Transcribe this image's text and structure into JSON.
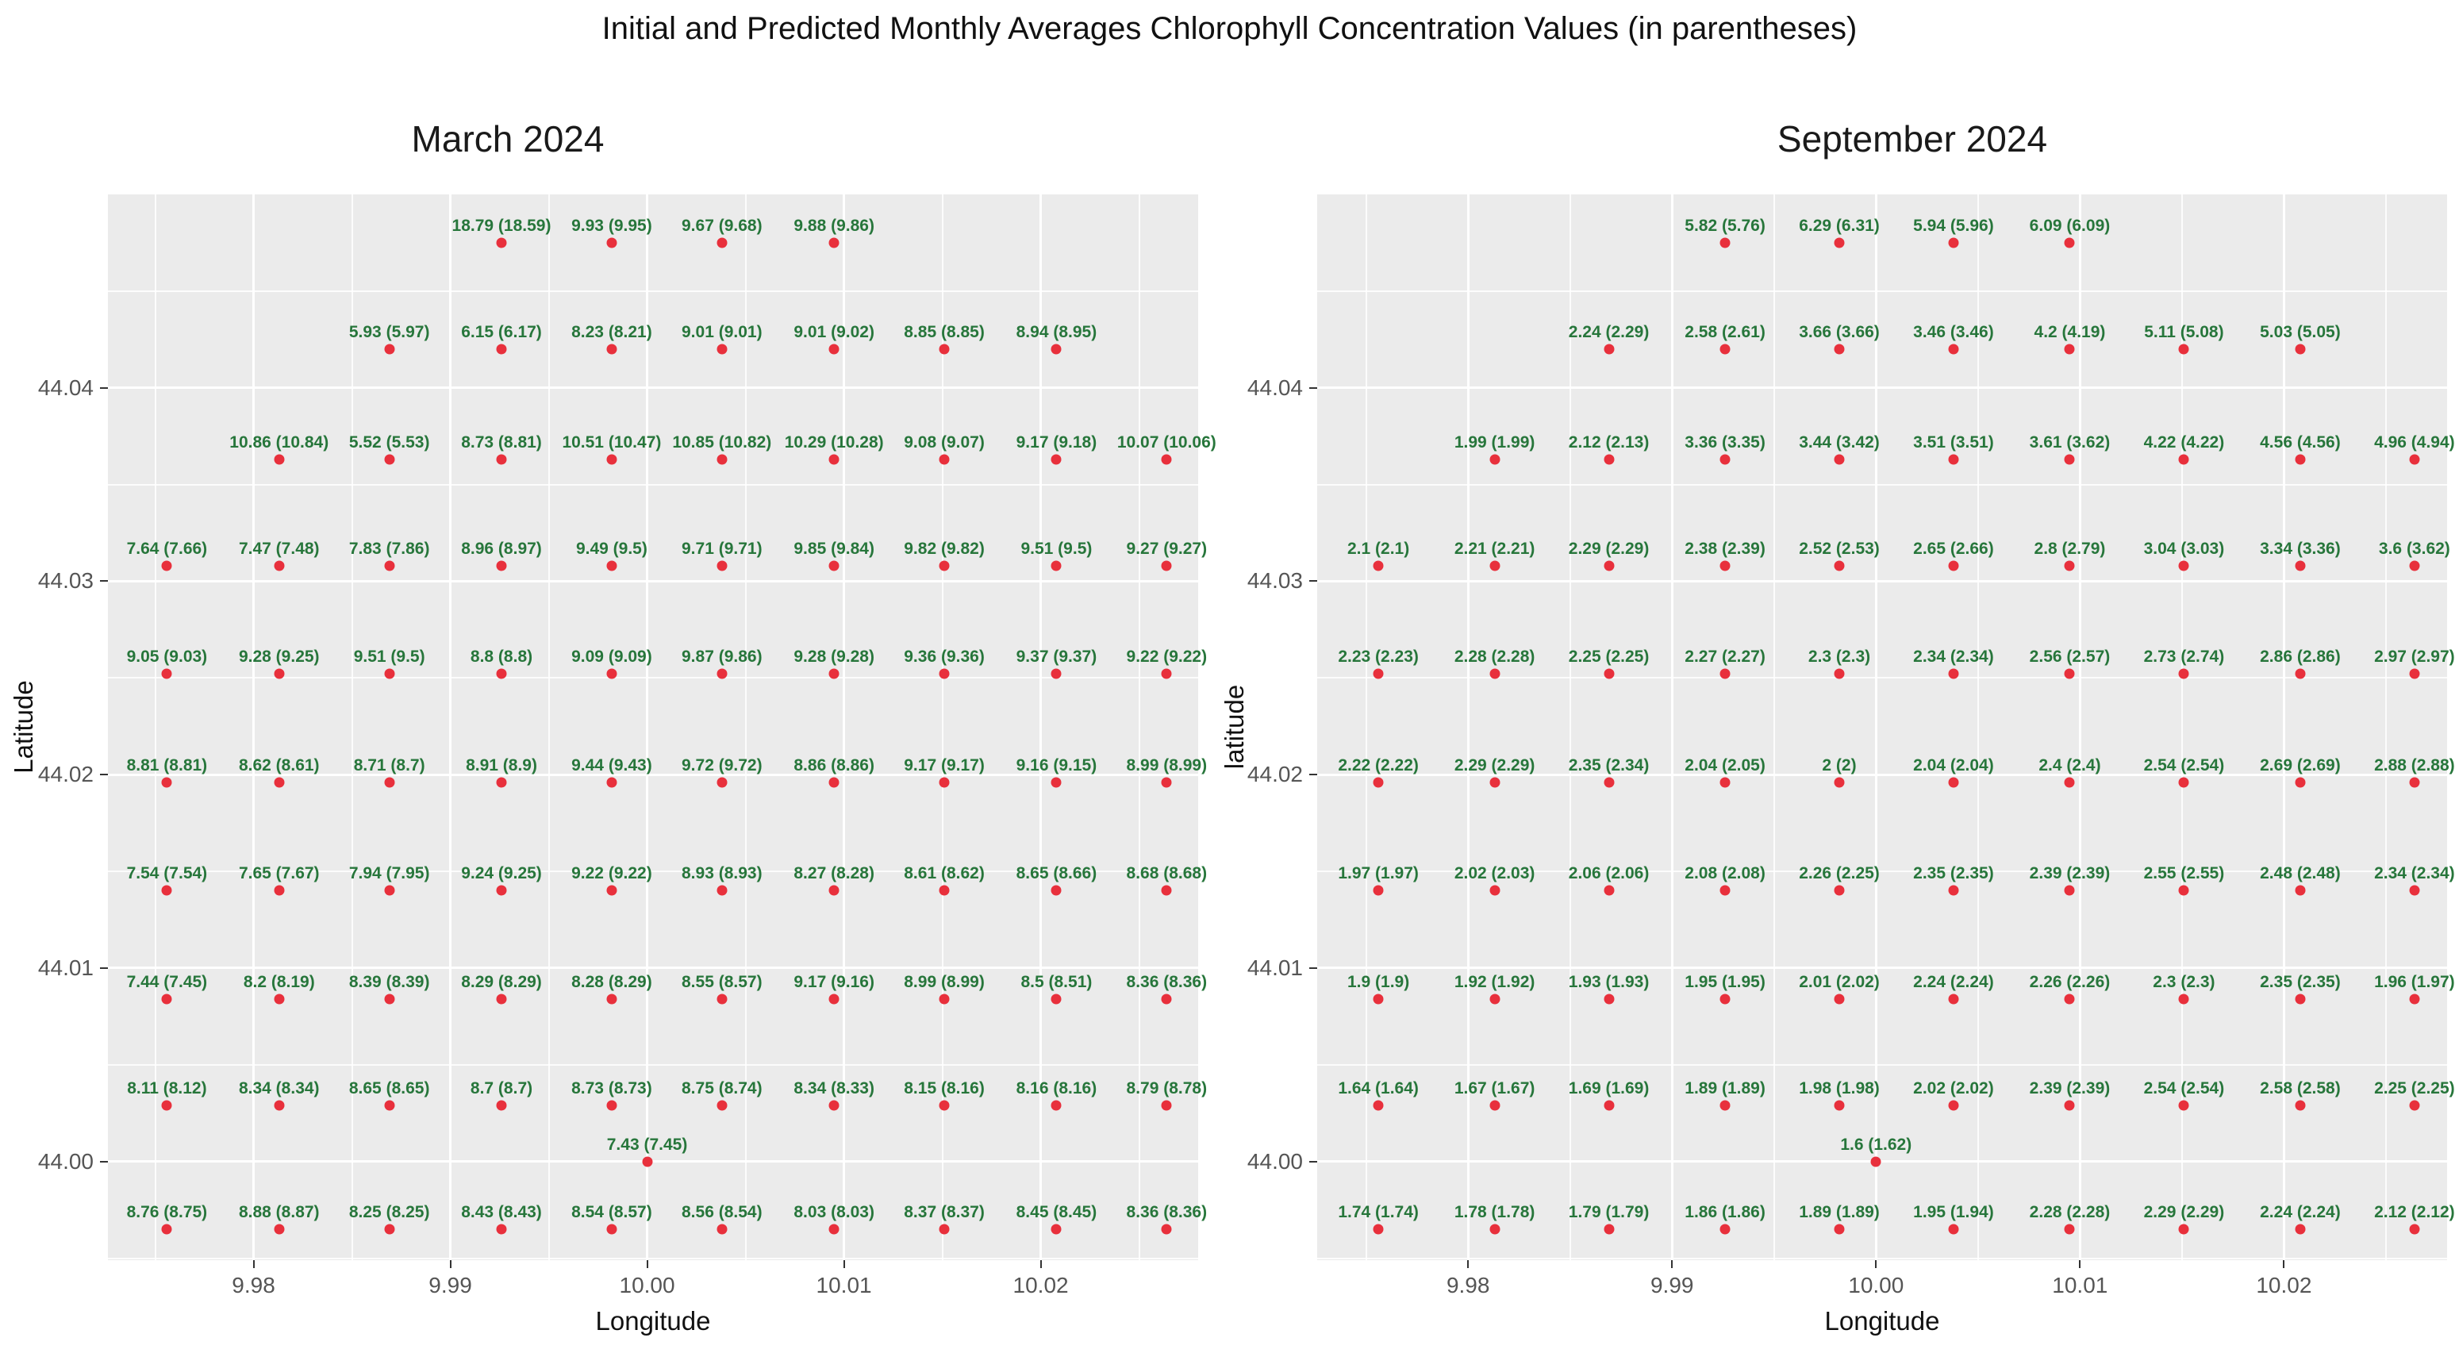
{
  "title": "Initial and Predicted Monthly Averages Chlorophyll Concentration Values (in parentheses)",
  "colors": {
    "point": "#e8303c",
    "label": "#27763b",
    "panel_bg": "#ebebeb",
    "grid": "#ffffff",
    "tick_text": "#555555",
    "axis_text": "#111111"
  },
  "shared_axes": {
    "xlim": [
      9.9726,
      10.028
    ],
    "ylim": [
      43.9949,
      44.05
    ],
    "x_tick_labels": [
      "9.98",
      "9.99",
      "10.00",
      "10.01",
      "10.02"
    ],
    "x_tick_values": [
      9.98,
      9.99,
      10.0,
      10.01,
      10.02
    ],
    "y_tick_labels": [
      "44.04",
      "44.03",
      "44.02",
      "44.01",
      "44.00"
    ],
    "y_tick_values": [
      44.04,
      44.03,
      44.02,
      44.01,
      44.0
    ],
    "x_minor": [
      9.975,
      9.985,
      9.995,
      10.005,
      10.015,
      10.025
    ],
    "y_minor": [
      43.995,
      44.005,
      44.015,
      44.025,
      44.035,
      44.045
    ],
    "col_lons": [
      9.9756,
      9.9813,
      9.9869,
      9.9926,
      9.9982,
      10.0038,
      10.0095,
      10.0151,
      10.0208,
      10.0264
    ],
    "grid_on": true
  },
  "chart_data": [
    {
      "type": "scatter",
      "title": "March 2024",
      "xlabel": "Longitude",
      "ylabel": "Latitude",
      "point_rows": [
        {
          "lat": 44.0475,
          "start_col": 3,
          "labels": [
            "18.79 (18.59)",
            "9.93 (9.95)",
            "9.67 (9.68)",
            "9.88 (9.86)"
          ]
        },
        {
          "lat": 44.042,
          "start_col": 2,
          "labels": [
            "5.93 (5.97)",
            "6.15 (6.17)",
            "8.23 (8.21)",
            "9.01 (9.01)",
            "9.01 (9.02)",
            "8.85 (8.85)",
            "8.94 (8.95)"
          ]
        },
        {
          "lat": 44.0363,
          "start_col": 1,
          "labels": [
            "10.86 (10.84)",
            "5.52 (5.53)",
            "8.73 (8.81)",
            "10.51 (10.47)",
            "10.85 (10.82)",
            "10.29 (10.28)",
            "9.08 (9.07)",
            "9.17 (9.18)",
            "10.07 (10.06)"
          ]
        },
        {
          "lat": 44.0308,
          "start_col": 0,
          "labels": [
            "7.64 (7.66)",
            "7.47 (7.48)",
            "7.83 (7.86)",
            "8.96 (8.97)",
            "9.49 (9.5)",
            "9.71 (9.71)",
            "9.85 (9.84)",
            "9.82 (9.82)",
            "9.51 (9.5)",
            "9.27 (9.27)"
          ]
        },
        {
          "lat": 44.0252,
          "start_col": 0,
          "labels": [
            "9.05 (9.03)",
            "9.28 (9.25)",
            "9.51 (9.5)",
            "8.8 (8.8)",
            "9.09 (9.09)",
            "9.87 (9.86)",
            "9.28 (9.28)",
            "9.36 (9.36)",
            "9.37 (9.37)",
            "9.22 (9.22)"
          ]
        },
        {
          "lat": 44.0196,
          "start_col": 0,
          "labels": [
            "8.81 (8.81)",
            "8.62 (8.61)",
            "8.71 (8.7)",
            "8.91 (8.9)",
            "9.44 (9.43)",
            "9.72 (9.72)",
            "8.86 (8.86)",
            "9.17 (9.17)",
            "9.16 (9.15)",
            "8.99 (8.99)"
          ]
        },
        {
          "lat": 44.014,
          "start_col": 0,
          "labels": [
            "7.54 (7.54)",
            "7.65 (7.67)",
            "7.94 (7.95)",
            "9.24 (9.25)",
            "9.22 (9.22)",
            "8.93 (8.93)",
            "8.27 (8.28)",
            "8.61 (8.62)",
            "8.65 (8.66)",
            "8.68 (8.68)"
          ]
        },
        {
          "lat": 44.0084,
          "start_col": 0,
          "labels": [
            "7.44 (7.45)",
            "8.2 (8.19)",
            "8.39 (8.39)",
            "8.29 (8.29)",
            "8.28 (8.29)",
            "8.55 (8.57)",
            "9.17 (9.16)",
            "8.99 (8.99)",
            "8.5 (8.51)",
            "8.36 (8.36)"
          ]
        },
        {
          "lat": 44.0029,
          "start_col": 0,
          "labels": [
            "8.11 (8.12)",
            "8.34 (8.34)",
            "8.65 (8.65)",
            "8.7 (8.7)",
            "8.73 (8.73)",
            "8.75 (8.74)",
            "8.34 (8.33)",
            "8.15 (8.16)",
            "8.16 (8.16)",
            "8.79 (8.78)"
          ]
        },
        {
          "lat": 44.0,
          "lons": [
            10.0
          ],
          "labels": [
            "7.43 (7.45)"
          ]
        },
        {
          "lat": 43.9965,
          "start_col": 0,
          "labels": [
            "8.76 (8.75)",
            "8.88 (8.87)",
            "8.25 (8.25)",
            "8.43 (8.43)",
            "8.54 (8.57)",
            "8.56 (8.54)",
            "8.03 (8.03)",
            "8.37 (8.37)",
            "8.45 (8.45)",
            "8.36 (8.36)"
          ]
        }
      ]
    },
    {
      "type": "scatter",
      "title": "September 2024",
      "xlabel": "Longitude",
      "ylabel": "latitude",
      "point_rows": [
        {
          "lat": 44.0475,
          "start_col": 3,
          "labels": [
            "5.82 (5.76)",
            "6.29 (6.31)",
            "5.94 (5.96)",
            "6.09 (6.09)"
          ]
        },
        {
          "lat": 44.042,
          "start_col": 2,
          "labels": [
            "2.24 (2.29)",
            "2.58 (2.61)",
            "3.66 (3.66)",
            "3.46 (3.46)",
            "4.2 (4.19)",
            "5.11 (5.08)",
            "5.03 (5.05)"
          ]
        },
        {
          "lat": 44.0363,
          "start_col": 1,
          "labels": [
            "1.99 (1.99)",
            "2.12 (2.13)",
            "3.36 (3.35)",
            "3.44 (3.42)",
            "3.51 (3.51)",
            "3.61 (3.62)",
            "4.22 (4.22)",
            "4.56 (4.56)",
            "4.96 (4.94)"
          ]
        },
        {
          "lat": 44.0308,
          "start_col": 0,
          "labels": [
            "2.1 (2.1)",
            "2.21 (2.21)",
            "2.29 (2.29)",
            "2.38 (2.39)",
            "2.52 (2.53)",
            "2.65 (2.66)",
            "2.8 (2.79)",
            "3.04 (3.03)",
            "3.34 (3.36)",
            "3.6 (3.62)"
          ]
        },
        {
          "lat": 44.0252,
          "start_col": 0,
          "labels": [
            "2.23 (2.23)",
            "2.28 (2.28)",
            "2.25 (2.25)",
            "2.27 (2.27)",
            "2.3 (2.3)",
            "2.34 (2.34)",
            "2.56 (2.57)",
            "2.73 (2.74)",
            "2.86 (2.86)",
            "2.97 (2.97)"
          ]
        },
        {
          "lat": 44.0196,
          "start_col": 0,
          "labels": [
            "2.22 (2.22)",
            "2.29 (2.29)",
            "2.35 (2.34)",
            "2.04 (2.05)",
            "2 (2)",
            "2.04 (2.04)",
            "2.4 (2.4)",
            "2.54 (2.54)",
            "2.69 (2.69)",
            "2.88 (2.88)"
          ]
        },
        {
          "lat": 44.014,
          "start_col": 0,
          "labels": [
            "1.97 (1.97)",
            "2.02 (2.03)",
            "2.06 (2.06)",
            "2.08 (2.08)",
            "2.26 (2.25)",
            "2.35 (2.35)",
            "2.39 (2.39)",
            "2.55 (2.55)",
            "2.48 (2.48)",
            "2.34 (2.34)"
          ]
        },
        {
          "lat": 44.0084,
          "start_col": 0,
          "labels": [
            "1.9 (1.9)",
            "1.92 (1.92)",
            "1.93 (1.93)",
            "1.95 (1.95)",
            "2.01 (2.02)",
            "2.24 (2.24)",
            "2.26 (2.26)",
            "2.3 (2.3)",
            "2.35 (2.35)",
            "1.96 (1.97)"
          ]
        },
        {
          "lat": 44.0029,
          "start_col": 0,
          "labels": [
            "1.64 (1.64)",
            "1.67 (1.67)",
            "1.69 (1.69)",
            "1.89 (1.89)",
            "1.98 (1.98)",
            "2.02 (2.02)",
            "2.39 (2.39)",
            "2.54 (2.54)",
            "2.58 (2.58)",
            "2.25 (2.25)"
          ]
        },
        {
          "lat": 44.0,
          "lons": [
            10.0
          ],
          "labels": [
            "1.6 (1.62)"
          ]
        },
        {
          "lat": 43.9965,
          "start_col": 0,
          "labels": [
            "1.74 (1.74)",
            "1.78 (1.78)",
            "1.79 (1.79)",
            "1.86 (1.86)",
            "1.89 (1.89)",
            "1.95 (1.94)",
            "2.28 (2.28)",
            "2.29 (2.29)",
            "2.24 (2.24)",
            "2.12 (2.12)"
          ]
        }
      ]
    }
  ]
}
